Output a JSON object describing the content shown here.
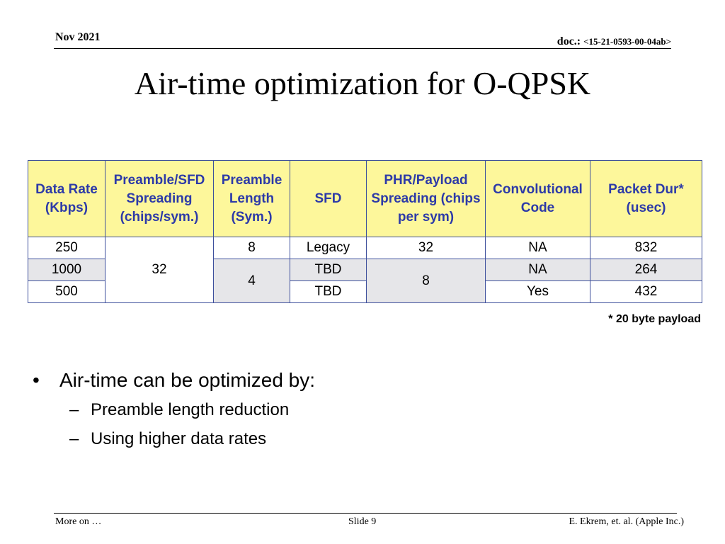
{
  "header": {
    "date": "Nov 2021",
    "doc_prefix": "doc.: ",
    "doc_number": "<15-21-0593-00-04ab>"
  },
  "title": "Air-time optimization for O-QPSK",
  "table": {
    "headers": [
      "Data Rate (Kbps)",
      "Preamble/SFD Spreading (chips/sym.)",
      "Preamble Length (Sym.)",
      "SFD",
      "PHR/Payload Spreading (chips per sym)",
      "Convolutional Code",
      "Packet Dur* (usec)"
    ],
    "rows": [
      {
        "rate": "250",
        "pre_spread": "32",
        "pre_len": "8",
        "sfd": "Legacy",
        "payload_spread": "32",
        "code": "NA",
        "dur": "832"
      },
      {
        "rate": "1000",
        "pre_len": "4",
        "sfd": "TBD",
        "payload_spread": "8",
        "code": "NA",
        "dur": "264"
      },
      {
        "rate": "500",
        "sfd": "TBD",
        "code": "Yes",
        "dur": "432"
      }
    ],
    "footnote": "* 20 byte payload"
  },
  "bullets": {
    "main": "Air-time can be optimized by:",
    "subs": [
      "Preamble length reduction",
      "Using higher data rates"
    ]
  },
  "footer": {
    "left": "More on …",
    "center": "Slide 9",
    "right": "E. Ekrem, et. al. (Apple Inc.)"
  }
}
